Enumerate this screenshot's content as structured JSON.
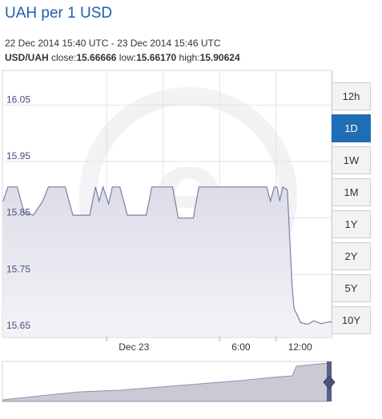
{
  "header": {
    "title": "UAH per 1 USD",
    "range_text": "22 Dec 2014 15:40 UTC - 23 Dec 2014 15:46 UTC",
    "pair": "USD/UAH",
    "close_label": "close:",
    "close_value": "15.66666",
    "low_label": "low:",
    "low_value": "15.66170",
    "high_label": "high:",
    "high_value": "15.90624"
  },
  "buttons": [
    {
      "label": "12h",
      "active": false
    },
    {
      "label": "1D",
      "active": true
    },
    {
      "label": "1W",
      "active": false
    },
    {
      "label": "1M",
      "active": false
    },
    {
      "label": "1Y",
      "active": false
    },
    {
      "label": "2Y",
      "active": false
    },
    {
      "label": "5Y",
      "active": false
    },
    {
      "label": "10Y",
      "active": false
    }
  ],
  "colors": {
    "line": "#7b7fa0",
    "fill": "#e4e5ee",
    "active_button": "#1f6db5",
    "title": "#1f5fa8"
  },
  "chart_data": {
    "type": "area",
    "ylim": [
      15.64,
      16.11
    ],
    "y_ticks": [
      "16.05",
      "15.95",
      "15.85",
      "15.75",
      "15.65"
    ],
    "x_ticks": [
      "Dec 23",
      "6:00",
      "12:00"
    ],
    "grid": true,
    "series": [
      {
        "values": [
          [
            0,
            15.88
          ],
          [
            0.25,
            15.905
          ],
          [
            0.75,
            15.905
          ],
          [
            1.1,
            15.86
          ],
          [
            1.6,
            15.855
          ],
          [
            2.1,
            15.88
          ],
          [
            2.4,
            15.905
          ],
          [
            3.3,
            15.905
          ],
          [
            3.7,
            15.855
          ],
          [
            4.6,
            15.855
          ],
          [
            4.9,
            15.905
          ],
          [
            5.1,
            15.88
          ],
          [
            5.3,
            15.905
          ],
          [
            5.6,
            15.875
          ],
          [
            5.8,
            15.905
          ],
          [
            6.2,
            15.905
          ],
          [
            6.6,
            15.855
          ],
          [
            7.6,
            15.855
          ],
          [
            7.9,
            15.905
          ],
          [
            9.0,
            15.905
          ],
          [
            9.3,
            15.85
          ],
          [
            10.1,
            15.85
          ],
          [
            10.4,
            15.905
          ],
          [
            14.0,
            15.905
          ],
          [
            14.2,
            15.88
          ],
          [
            14.4,
            15.905
          ],
          [
            14.55,
            15.905
          ],
          [
            14.7,
            15.88
          ],
          [
            14.85,
            15.905
          ],
          [
            15.1,
            15.9
          ],
          [
            15.35,
            15.73
          ],
          [
            15.45,
            15.69
          ],
          [
            15.6,
            15.68
          ],
          [
            15.8,
            15.665
          ],
          [
            16.2,
            15.662
          ],
          [
            16.5,
            15.668
          ],
          [
            16.9,
            15.663
          ],
          [
            17.3,
            15.666
          ],
          [
            17.8,
            15.666
          ]
        ]
      }
    ]
  }
}
